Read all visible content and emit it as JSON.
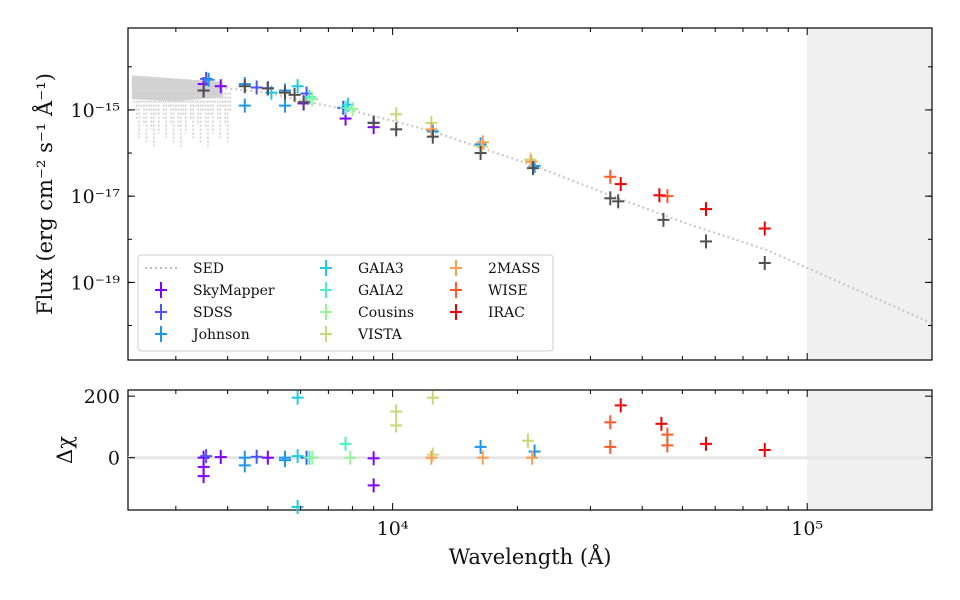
{
  "chart_data": [
    {
      "type": "scatter",
      "panel": "top",
      "ylabel": "Flux (erg cm⁻² s⁻¹ Å⁻¹)",
      "xscale": "log",
      "yscale": "log",
      "xlim": [
        2300,
        200000
      ],
      "ylim_log10": [
        -20.8,
        -13.1
      ],
      "y_ticks": [
        {
          "value": -15,
          "label": "10⁻¹⁵"
        },
        {
          "value": -17,
          "label": "10⁻¹⁷"
        },
        {
          "value": -19,
          "label": "10⁻¹⁹"
        }
      ],
      "shaded_region_x": [
        100000,
        200000
      ],
      "sed_model": {
        "name": "SED",
        "color": "#c8c8c8",
        "x": [
          2400,
          3000,
          4000,
          5000,
          6000,
          8000,
          10000,
          12500,
          16000,
          22000,
          35000,
          50000,
          80000,
          120000,
          200000
        ],
        "log10_flux": [
          -14.35,
          -14.42,
          -14.5,
          -14.6,
          -14.78,
          -15.02,
          -15.25,
          -15.5,
          -15.85,
          -16.3,
          -17.05,
          -17.6,
          -18.25,
          -19.0,
          -19.95
        ]
      },
      "series": [
        {
          "name": "SED",
          "color": "#bdbdbd",
          "kind": "line"
        },
        {
          "name": "SkyMapper",
          "color": "#7f00ff",
          "points": [
            [
              3500,
              -14.4
            ],
            [
              3500,
              -14.55
            ],
            [
              3850,
              -14.45
            ],
            [
              5000,
              -14.5
            ],
            [
              6100,
              -14.85
            ],
            [
              7700,
              -15.2
            ],
            [
              9000,
              -15.4
            ]
          ]
        },
        {
          "name": "SDSS",
          "color": "#4b53f5",
          "points": [
            [
              3550,
              -14.28
            ],
            [
              4700,
              -14.48
            ],
            [
              6200,
              -14.62
            ],
            [
              7600,
              -14.95
            ],
            [
              9000,
              -15.3
            ]
          ]
        },
        {
          "name": "Johnson",
          "color": "#1e96f0",
          "points": [
            [
              3600,
              -14.3
            ],
            [
              4400,
              -14.4
            ],
            [
              4400,
              -14.9
            ],
            [
              5500,
              -14.9
            ],
            [
              5500,
              -14.55
            ],
            [
              6300,
              -14.7
            ],
            [
              12500,
              -15.5
            ],
            [
              16300,
              -15.8
            ],
            [
              22000,
              -16.3
            ]
          ]
        },
        {
          "name": "GAIA3",
          "color": "#1ecbe1",
          "points": [
            [
              5900,
              -14.45
            ],
            [
              5100,
              -14.6
            ],
            [
              7800,
              -14.88
            ]
          ]
        },
        {
          "name": "GAIA2",
          "color": "#4bf0c8",
          "points": [
            [
              6300,
              -14.7
            ],
            [
              7700,
              -14.95
            ]
          ]
        },
        {
          "name": "Cousins",
          "color": "#96f59b",
          "points": [
            [
              6400,
              -14.75
            ],
            [
              8000,
              -14.98
            ]
          ]
        },
        {
          "name": "VISTA",
          "color": "#c8d878",
          "points": [
            [
              10200,
              -15.1
            ],
            [
              12400,
              -15.3
            ],
            [
              16400,
              -15.85
            ],
            [
              21500,
              -16.15
            ]
          ]
        },
        {
          "name": "2MASS",
          "color": "#ff9d51",
          "points": [
            [
              12400,
              -15.45
            ],
            [
              16500,
              -15.75
            ],
            [
              21600,
              -16.2
            ]
          ]
        },
        {
          "name": "WISE",
          "color": "#ff5a2b",
          "points": [
            [
              33500,
              -16.55
            ],
            [
              46000,
              -17.0
            ]
          ]
        },
        {
          "name": "IRAC",
          "color": "#f00000",
          "points": [
            [
              35500,
              -16.72
            ],
            [
              44000,
              -16.98
            ],
            [
              57000,
              -17.3
            ],
            [
              79000,
              -17.75
            ]
          ]
        },
        {
          "name": "model",
          "color": "#505050",
          "legend": false,
          "points": [
            [
              3500,
              -14.55
            ],
            [
              4400,
              -14.45
            ],
            [
              5000,
              -14.5
            ],
            [
              5500,
              -14.6
            ],
            [
              5800,
              -14.65
            ],
            [
              6100,
              -14.82
            ],
            [
              9000,
              -15.3
            ],
            [
              10200,
              -15.45
            ],
            [
              12500,
              -15.62
            ],
            [
              16300,
              -16.0
            ],
            [
              21800,
              -16.35
            ],
            [
              33500,
              -17.05
            ],
            [
              35000,
              -17.12
            ],
            [
              45000,
              -17.55
            ],
            [
              57000,
              -18.05
            ],
            [
              79000,
              -18.55
            ]
          ]
        }
      ],
      "legend_position": "lower-left"
    },
    {
      "type": "scatter",
      "panel": "bottom",
      "xlabel": "Wavelength (Å)",
      "ylabel": "Δχ",
      "xscale": "log",
      "xlim": [
        2300,
        200000
      ],
      "ylim": [
        -170,
        220
      ],
      "y_ticks": [
        {
          "value": 200,
          "label": "200"
        },
        {
          "value": 0,
          "label": "0"
        }
      ],
      "x_ticks": [
        {
          "value": 10000,
          "label": "10⁴"
        },
        {
          "value": 100000,
          "label": "10⁵"
        }
      ],
      "shaded_region_x": [
        100000,
        200000
      ],
      "series": [
        {
          "name": "SkyMapper",
          "color": "#7f00ff",
          "points": [
            [
              3500,
              0
            ],
            [
              3500,
              -30
            ],
            [
              3500,
              -60
            ],
            [
              3850,
              2
            ],
            [
              5000,
              0
            ],
            [
              9000,
              -90
            ],
            [
              9000,
              -2
            ]
          ]
        },
        {
          "name": "SDSS",
          "color": "#4b53f5",
          "points": [
            [
              3550,
              5
            ],
            [
              4700,
              3
            ],
            [
              6200,
              0
            ]
          ]
        },
        {
          "name": "Johnson",
          "color": "#1e96f0",
          "points": [
            [
              4400,
              -25
            ],
            [
              4400,
              0
            ],
            [
              5500,
              -8
            ],
            [
              5500,
              0
            ],
            [
              16300,
              35
            ],
            [
              22000,
              20
            ]
          ]
        },
        {
          "name": "GAIA3",
          "color": "#1ecbe1",
          "points": [
            [
              5900,
              195
            ],
            [
              5900,
              -160
            ],
            [
              5900,
              5
            ]
          ]
        },
        {
          "name": "GAIA2",
          "color": "#4bf0c8",
          "points": [
            [
              6300,
              0
            ],
            [
              7700,
              45
            ]
          ]
        },
        {
          "name": "Cousins",
          "color": "#96f59b",
          "points": [
            [
              6400,
              0
            ],
            [
              7900,
              0
            ]
          ]
        },
        {
          "name": "VISTA",
          "color": "#c8d878",
          "points": [
            [
              10200,
              150
            ],
            [
              10200,
              105
            ],
            [
              12500,
              195
            ],
            [
              12500,
              10
            ],
            [
              21200,
              55
            ]
          ]
        },
        {
          "name": "2MASS",
          "color": "#ff9d51",
          "points": [
            [
              12400,
              0
            ],
            [
              16500,
              0
            ],
            [
              21700,
              0
            ]
          ]
        },
        {
          "name": "WISE",
          "color": "#ff5a2b",
          "points": [
            [
              33500,
              115
            ],
            [
              33500,
              35
            ],
            [
              46000,
              75
            ],
            [
              46000,
              40
            ]
          ]
        },
        {
          "name": "IRAC",
          "color": "#f00000",
          "points": [
            [
              35500,
              170
            ],
            [
              44500,
              110
            ],
            [
              57000,
              45
            ],
            [
              79000,
              25
            ]
          ]
        }
      ]
    }
  ]
}
